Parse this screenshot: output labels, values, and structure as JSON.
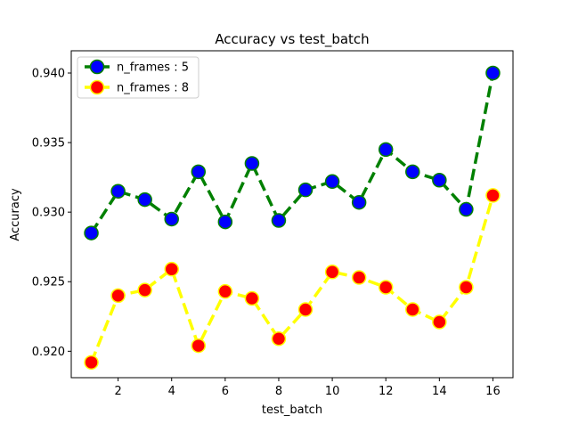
{
  "chart_data": {
    "type": "line",
    "title": "Accuracy vs test_batch",
    "xlabel": "test_batch",
    "ylabel": "Accuracy",
    "xlim": [
      0.25,
      16.75
    ],
    "ylim": [
      0.9181,
      0.9416
    ],
    "xticks": [
      2,
      4,
      6,
      8,
      10,
      12,
      14,
      16
    ],
    "yticks": [
      0.92,
      0.925,
      0.93,
      0.935,
      0.94
    ],
    "ytick_labels": [
      "0.920",
      "0.925",
      "0.930",
      "0.935",
      "0.940"
    ],
    "legend_position": "upper-left",
    "grid": false,
    "x": [
      1,
      2,
      3,
      4,
      5,
      6,
      7,
      8,
      9,
      10,
      11,
      12,
      13,
      14,
      15,
      16
    ],
    "series": [
      {
        "name": "n_frames : 5",
        "line_color": "#008000",
        "marker_face": "#0000ff",
        "marker_edge": "#008000",
        "line_style": "dashed",
        "values": [
          0.9285,
          0.9315,
          0.9309,
          0.9295,
          0.9329,
          0.9293,
          0.9335,
          0.9294,
          0.9316,
          0.9322,
          0.9307,
          0.9345,
          0.9329,
          0.9323,
          0.9302,
          0.94
        ]
      },
      {
        "name": "n_frames : 8",
        "line_color": "#ffff00",
        "marker_face": "#ff0000",
        "marker_edge": "#ffff00",
        "line_style": "dashed",
        "values": [
          0.9192,
          0.924,
          0.9244,
          0.9259,
          0.9204,
          0.9243,
          0.9238,
          0.9209,
          0.923,
          0.9257,
          0.9253,
          0.9246,
          0.923,
          0.9221,
          0.9246,
          0.9312
        ]
      }
    ]
  }
}
